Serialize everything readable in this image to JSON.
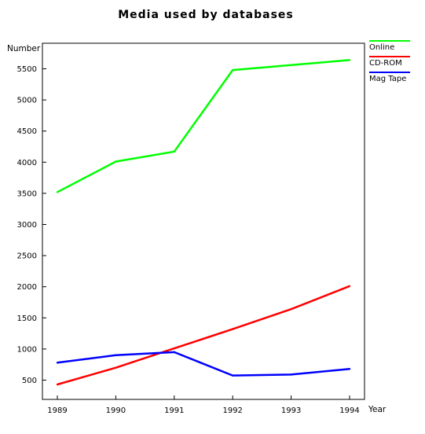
{
  "chart_data": {
    "type": "line",
    "title": "Media used by databases",
    "xlabel": "Year",
    "ylabel": "Number",
    "categories": [
      "1989",
      "1990",
      "1991",
      "1992",
      "1993",
      "1994"
    ],
    "x": [
      1989,
      1990,
      1991,
      1992,
      1993,
      1994
    ],
    "ylim": [
      200,
      5900
    ],
    "yticks": [
      500,
      1000,
      1500,
      2000,
      2500,
      3000,
      3500,
      4000,
      4500,
      5000,
      5500
    ],
    "grid": false,
    "legend_position": "top-right",
    "series": [
      {
        "name": "Online",
        "color": "#00ff00",
        "values": [
          3520,
          4010,
          4170,
          5480,
          5560,
          5640
        ]
      },
      {
        "name": "CD-ROM",
        "color": "#ff0000",
        "values": [
          430,
          700,
          1010,
          1320,
          1640,
          2010
        ]
      },
      {
        "name": "Mag Tape",
        "color": "#0000ff",
        "values": [
          780,
          900,
          950,
          575,
          590,
          680
        ]
      }
    ]
  }
}
